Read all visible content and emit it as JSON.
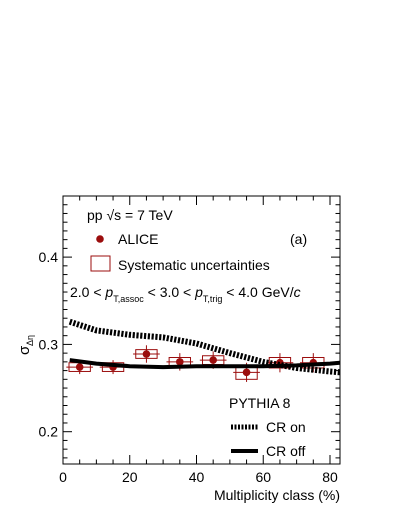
{
  "chart_data": {
    "type": "scatter",
    "xlabel": "Multiplicity class (%)",
    "ylabel": "σ",
    "ylabel_sub": "Δη",
    "xlim": [
      0,
      83
    ],
    "ylim": [
      0.163,
      0.47
    ],
    "x_ticks": [
      0,
      20,
      40,
      60,
      80
    ],
    "y_ticks": [
      0.2,
      0.3,
      0.4
    ],
    "x_tick_labels": [
      "0",
      "20",
      "40",
      "60",
      "80"
    ],
    "y_tick_labels": [
      "0.2",
      "0.3",
      "0.4"
    ],
    "annotations": {
      "system_pre": "pp ",
      "system_sqrt": "√",
      "system_s": "s",
      "system_post": " = 7 TeV",
      "panel": "(a)",
      "cut": {
        "a": "2.0 < ",
        "p1": "p",
        "sub1": "T,assoc",
        "b": " < 3.0 < ",
        "p2": "p",
        "sub2": "T,trig",
        "c": " < 4.0 GeV/",
        "d": "c"
      },
      "model": "PYTHIA 8"
    },
    "legend": {
      "data": "ALICE",
      "syst": "Systematic uncertainties",
      "cr_on": "CR on",
      "cr_off": "CR off"
    },
    "series": [
      {
        "name": "ALICE",
        "style": "marker",
        "color": "#9b0d0d",
        "x": [
          5,
          15,
          25,
          35,
          45,
          55,
          65,
          75
        ],
        "y": [
          0.274,
          0.274,
          0.289,
          0.28,
          0.282,
          0.268,
          0.279,
          0.279
        ],
        "yerr_stat": [
          0.008,
          0.008,
          0.01,
          0.01,
          0.01,
          0.011,
          0.011,
          0.011
        ],
        "xerr_stat": [
          4,
          4,
          4,
          4,
          4,
          4,
          4,
          4
        ],
        "box_halfwidth": 2.0,
        "yerr_sys": [
          0.005,
          0.005,
          0.005,
          0.005,
          0.005,
          0.008,
          0.006,
          0.006
        ]
      },
      {
        "name": "CR on",
        "style": "dashed",
        "color": "#000000",
        "x": [
          2,
          10,
          20,
          30,
          40,
          50,
          60,
          70,
          80,
          83
        ],
        "y": [
          0.326,
          0.316,
          0.311,
          0.308,
          0.301,
          0.29,
          0.28,
          0.273,
          0.269,
          0.268
        ]
      },
      {
        "name": "CR off",
        "style": "solid",
        "color": "#000000",
        "x": [
          2,
          10,
          20,
          30,
          40,
          50,
          60,
          70,
          80,
          83
        ],
        "y": [
          0.282,
          0.278,
          0.275,
          0.274,
          0.275,
          0.275,
          0.275,
          0.276,
          0.278,
          0.279
        ]
      }
    ]
  }
}
